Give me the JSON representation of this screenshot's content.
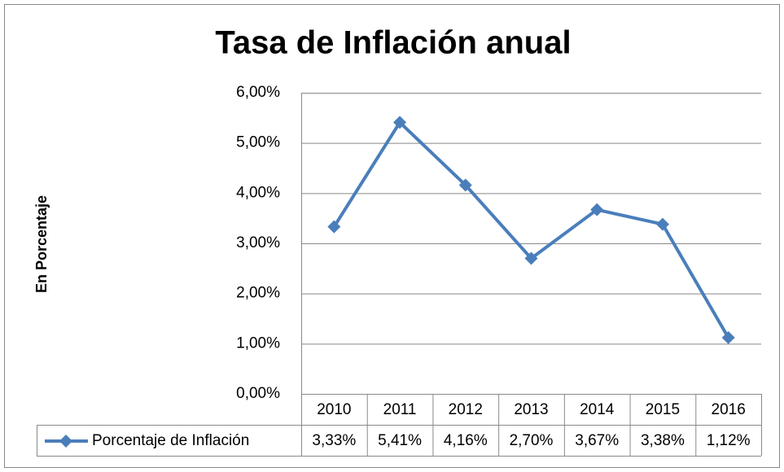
{
  "chart_data": {
    "type": "line",
    "title": "Tasa de Inflación anual",
    "y_label": "En Porcentaje",
    "categories": [
      "2010",
      "2011",
      "2012",
      "2013",
      "2014",
      "2015",
      "2016"
    ],
    "series": [
      {
        "name": "Porcentaje de Inflación",
        "color": "#4a7ebb",
        "values": [
          3.33,
          5.41,
          4.16,
          2.7,
          3.67,
          3.38,
          1.12
        ],
        "value_labels": [
          "3,33%",
          "5,41%",
          "4,16%",
          "2,70%",
          "3,67%",
          "3,38%",
          "1,12%"
        ]
      }
    ],
    "ylim": [
      0,
      6
    ],
    "yticks": [
      {
        "value": 0,
        "label": "0,00%"
      },
      {
        "value": 1,
        "label": "1,00%"
      },
      {
        "value": 2,
        "label": "2,00%"
      },
      {
        "value": 3,
        "label": "3,00%"
      },
      {
        "value": 4,
        "label": "4,00%"
      },
      {
        "value": 5,
        "label": "5,00%"
      },
      {
        "value": 6,
        "label": "6,00%"
      }
    ],
    "grid": true,
    "data_table": true
  }
}
